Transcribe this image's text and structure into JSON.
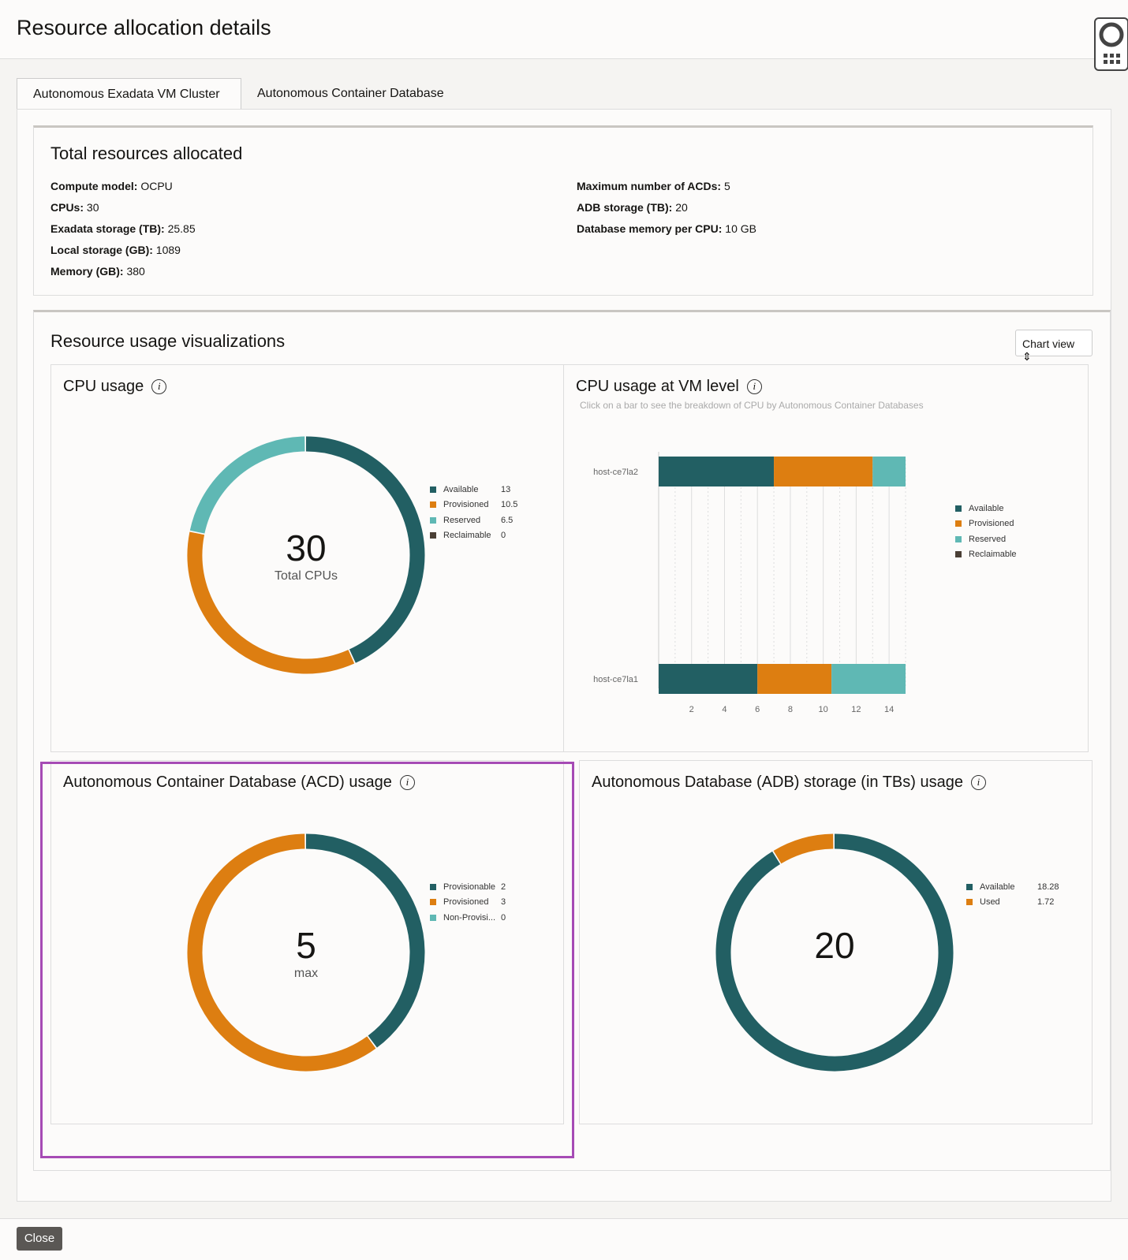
{
  "header": {
    "title": "Resource allocation details",
    "help_icon": "lifebuoy-icon"
  },
  "tabs": [
    {
      "label": "Autonomous Exadata VM Cluster",
      "active": true
    },
    {
      "label": "Autonomous Container Database",
      "active": false
    }
  ],
  "total": {
    "title": "Total resources allocated",
    "left": [
      {
        "k": "Compute model:",
        "v": "OCPU"
      },
      {
        "k": "CPUs:",
        "v": "30"
      },
      {
        "k": "Exadata storage (TB):",
        "v": "25.85"
      },
      {
        "k": "Local storage (GB):",
        "v": "1089"
      },
      {
        "k": "Memory (GB):",
        "v": "380"
      }
    ],
    "right": [
      {
        "k": "Maximum number of ACDs:",
        "v": "5"
      },
      {
        "k": "ADB storage (TB):",
        "v": "20"
      },
      {
        "k": "Database memory per CPU:",
        "v": "10 GB"
      }
    ]
  },
  "viz": {
    "title": "Resource usage visualizations",
    "view_select": "Chart view"
  },
  "colors": {
    "available": "#225f63",
    "provisioned": "#dd7e11",
    "reserved": "#5fb8b4",
    "reclaimable": "#4a3f35"
  },
  "chart_data": [
    {
      "type": "pie",
      "title": "CPU usage",
      "center_value": "30",
      "center_label": "Total CPUs",
      "series": [
        {
          "name": "Available",
          "value": 13
        },
        {
          "name": "Provisioned",
          "value": 10.5
        },
        {
          "name": "Reserved",
          "value": 6.5
        },
        {
          "name": "Reclaimable",
          "value": 0
        }
      ]
    },
    {
      "type": "bar",
      "orientation": "horizontal",
      "stacked": true,
      "title": "CPU usage at VM level",
      "subtitle": "Click on a bar to see the breakdown of CPU by Autonomous Container Databases",
      "categories": [
        "host-ce7la2",
        "host-ce7la1"
      ],
      "xlim": [
        0,
        15
      ],
      "xticks": [
        "2",
        "4",
        "6",
        "8",
        "10",
        "12",
        "14"
      ],
      "legend": "right",
      "series": [
        {
          "name": "Available",
          "values": [
            7,
            6
          ]
        },
        {
          "name": "Provisioned",
          "values": [
            6,
            4.5
          ]
        },
        {
          "name": "Reserved",
          "values": [
            2,
            4.5
          ]
        },
        {
          "name": "Reclaimable",
          "values": [
            0,
            0
          ]
        }
      ]
    },
    {
      "type": "pie",
      "title": "Autonomous Container Database (ACD) usage",
      "center_value": "5",
      "center_label": "max",
      "series": [
        {
          "name": "Provisionable",
          "value": 2
        },
        {
          "name": "Provisioned",
          "value": 3
        },
        {
          "name": "Non-Provisi...",
          "value": 0
        }
      ]
    },
    {
      "type": "pie",
      "title": "Autonomous Database (ADB) storage (in TBs) usage",
      "center_value": "20",
      "center_label": "",
      "series": [
        {
          "name": "Available",
          "value": 18.28
        },
        {
          "name": "Used",
          "value": 1.72
        }
      ]
    }
  ],
  "footer": {
    "close_label": "Close"
  }
}
